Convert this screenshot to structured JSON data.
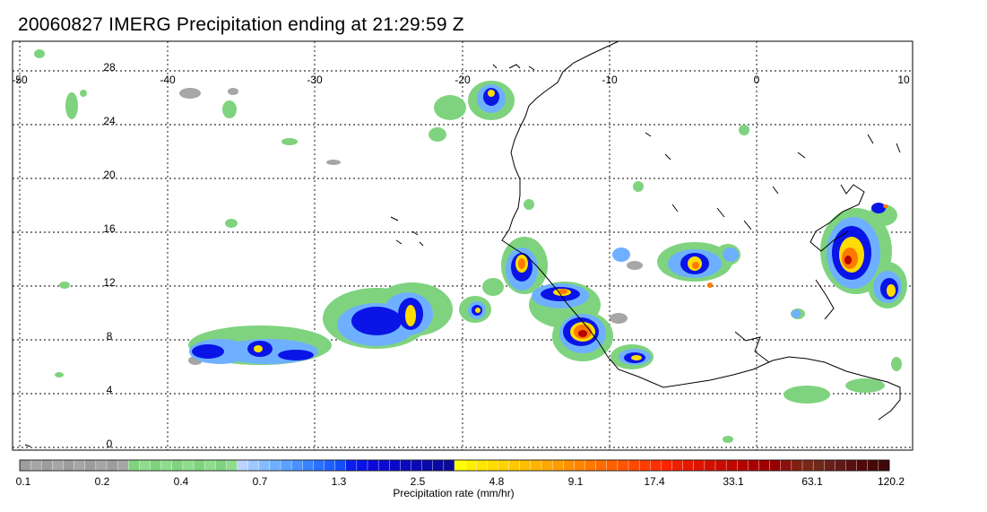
{
  "title": "20060827 IMERG Precipitation ending at 21:29:59 Z",
  "map": {
    "lon_range": [
      -50,
      10
    ],
    "lat_range": [
      -1,
      30
    ],
    "lon_ticks": [
      "-50",
      "-40",
      "-30",
      "-20",
      "-10",
      "0",
      "10"
    ],
    "lat_ticks": [
      "28",
      "24",
      "20",
      "16",
      "12",
      "8",
      "4",
      "0"
    ],
    "gridlines": true,
    "coastline_color": "#000000"
  },
  "colorbar": {
    "label": "Precipitation rate (mm/hr)",
    "tick_labels": [
      "0.1",
      "0.2",
      "0.4",
      "0.7",
      "1.3",
      "2.5",
      "4.8",
      "9.1",
      "17.4",
      "33.1",
      "63.1",
      "120.2"
    ],
    "colors": [
      "#9d9d9d",
      "#a6a6a6",
      "#9d9d9d",
      "#a6a6a6",
      "#9d9d9d",
      "#a6a6a6",
      "#9d9d9d",
      "#a6a6a6",
      "#9d9d9d",
      "#a6a6a6",
      "#7fd37f",
      "#8fdc8f",
      "#7fd37f",
      "#8fdc8f",
      "#7fd37f",
      "#8fdc8f",
      "#7fd37f",
      "#8fdc8f",
      "#7fd37f",
      "#8fdc8f",
      "#bcd3ff",
      "#9ec8ff",
      "#86bcff",
      "#6eb0ff",
      "#5aa2ff",
      "#4a92ff",
      "#3a82ff",
      "#2c70ff",
      "#1e60ff",
      "#1450f8",
      "#0a1ef0",
      "#0a14e6",
      "#0a0adc",
      "#0a0ad2",
      "#0a0ac8",
      "#0a0abe",
      "#0a0ab4",
      "#0a0aaa",
      "#0a0aa0",
      "#0a0a96",
      "#ffff00",
      "#fff000",
      "#ffe600",
      "#ffdc00",
      "#ffd200",
      "#ffc800",
      "#ffbe00",
      "#ffb400",
      "#ffa800",
      "#ff9c00",
      "#ff9000",
      "#ff8400",
      "#ff7800",
      "#ff6c00",
      "#ff6000",
      "#ff5400",
      "#ff4800",
      "#ff3c00",
      "#ff3000",
      "#ff2400",
      "#f01e00",
      "#e61800",
      "#dc1400",
      "#d21000",
      "#c80c00",
      "#be0800",
      "#b40400",
      "#aa0000",
      "#a00000",
      "#960000",
      "#8c1010",
      "#822010",
      "#782818",
      "#702818",
      "#682018",
      "#601818",
      "#581010",
      "#500808",
      "#480808",
      "#400808"
    ]
  }
}
